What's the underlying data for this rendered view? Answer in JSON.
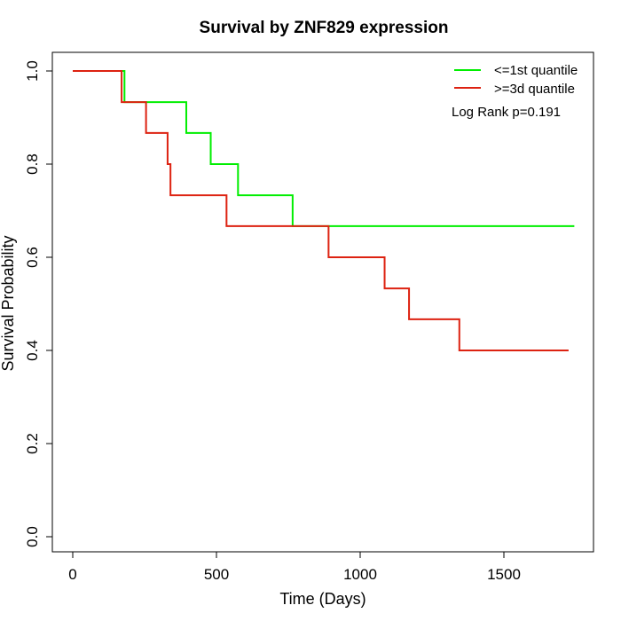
{
  "chart_data": {
    "type": "line",
    "title": "Survival by ZNF829 expression",
    "xlabel": "Time (Days)",
    "ylabel": "Survival Probability",
    "xlim": [
      0,
      1800
    ],
    "ylim": [
      0,
      1
    ],
    "x_ticks": [
      0,
      500,
      1000,
      1500
    ],
    "y_ticks": [
      0.0,
      0.2,
      0.4,
      0.6,
      0.8,
      1.0
    ],
    "x_tick_labels": [
      "0",
      "500",
      "1000",
      "1500"
    ],
    "y_tick_labels": [
      "0.0",
      "0.2",
      "0.4",
      "0.6",
      "0.8",
      "1.0"
    ],
    "legend_position": "top-right",
    "annotation": "Log Rank p=0.191",
    "series": [
      {
        "name": "<=1st quantile",
        "color": "#00ee00",
        "steps": [
          [
            0,
            1.0
          ],
          [
            180,
            0.933
          ],
          [
            395,
            0.867
          ],
          [
            480,
            0.8
          ],
          [
            575,
            0.733
          ],
          [
            765,
            0.667
          ],
          [
            1745,
            0.667
          ]
        ]
      },
      {
        "name": ">=3d quantile",
        "color": "#dd2211",
        "steps": [
          [
            0,
            1.0
          ],
          [
            170,
            0.933
          ],
          [
            255,
            0.867
          ],
          [
            330,
            0.8
          ],
          [
            340,
            0.733
          ],
          [
            535,
            0.667
          ],
          [
            890,
            0.6
          ],
          [
            1085,
            0.533
          ],
          [
            1170,
            0.467
          ],
          [
            1345,
            0.4
          ],
          [
            1725,
            0.4
          ]
        ]
      }
    ]
  }
}
